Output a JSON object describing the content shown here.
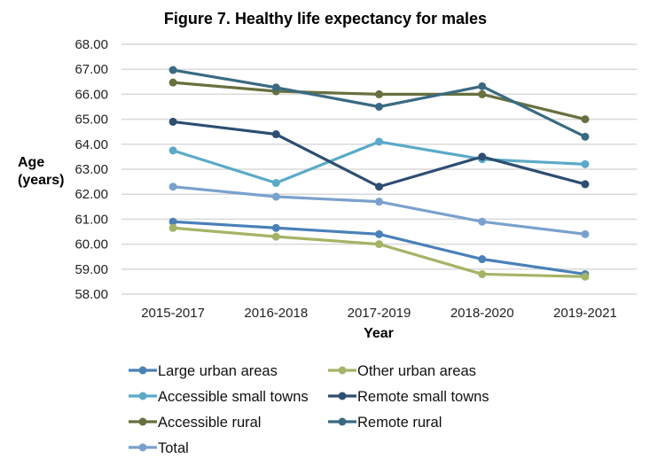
{
  "chart_data": {
    "type": "line",
    "title": "Figure 7. Healthy life expectancy for males",
    "xlabel": "Year",
    "ylabel": [
      "Age",
      "(years)"
    ],
    "categories": [
      "2015-2017",
      "2016-2018",
      "2017-2019",
      "2018-2020",
      "2019-2021"
    ],
    "ylim": [
      58,
      68
    ],
    "yticks": [
      "68.00",
      "67.00",
      "66.00",
      "65.00",
      "64.00",
      "63.00",
      "62.00",
      "61.00",
      "60.00",
      "59.00",
      "58.00"
    ],
    "grid": true,
    "legend_position": "bottom",
    "series": [
      {
        "name": "Large urban areas",
        "color": "#4a80b8",
        "values": [
          60.9,
          60.65,
          60.4,
          59.4,
          58.8
        ]
      },
      {
        "name": "Other urban areas",
        "color": "#a4b466",
        "values": [
          60.65,
          60.3,
          60.0,
          58.8,
          58.7
        ]
      },
      {
        "name": "Accessible small towns",
        "color": "#5aaac8",
        "values": [
          63.75,
          62.45,
          64.1,
          63.4,
          63.2
        ]
      },
      {
        "name": "Remote small towns",
        "color": "#2d4e72",
        "values": [
          64.9,
          64.4,
          62.3,
          63.5,
          62.4
        ]
      },
      {
        "name": "Accessible rural",
        "color": "#67703e",
        "values": [
          66.47,
          66.12,
          66.0,
          66.0,
          65.0
        ]
      },
      {
        "name": "Remote rural",
        "color": "#3a6a82",
        "values": [
          66.97,
          66.27,
          65.5,
          66.32,
          64.3
        ]
      },
      {
        "name": "Total",
        "color": "#7aa1cd",
        "values": [
          62.3,
          61.9,
          61.7,
          60.9,
          60.4
        ]
      }
    ]
  }
}
